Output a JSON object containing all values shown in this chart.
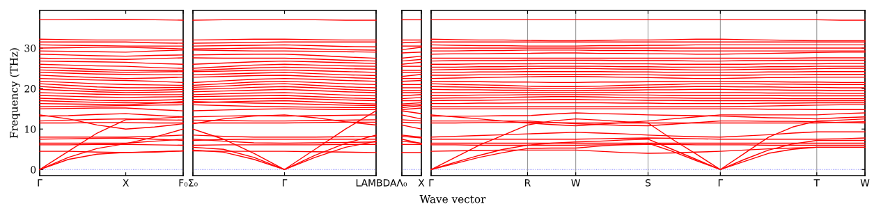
{
  "chart_data": [
    {
      "type": "line",
      "ylabel": "Frequency (THz)",
      "ylim": [
        -1.5,
        39.3
      ],
      "yticks": [
        0,
        10,
        20,
        30
      ],
      "categories": [
        "Γ",
        null,
        null,
        "X",
        null,
        "F₀"
      ],
      "ref_lines": [
        {
          "axis": "y",
          "value": 0,
          "color": "#8080ff",
          "line_style": "dotted"
        }
      ],
      "series": [
        {
          "color": "#ff0000",
          "values": [
            37,
            37,
            37.1,
            37.1,
            37,
            36.9
          ]
        },
        {
          "color": "#ff0000",
          "values": [
            32.2,
            32.1,
            32,
            32,
            32,
            32
          ]
        },
        {
          "color": "#ff0000",
          "values": [
            31.5,
            31.5,
            31.5,
            31.5,
            31.3,
            31.2
          ]
        },
        {
          "color": "#ff0000",
          "values": [
            30.8,
            30.7,
            30.6,
            30.5,
            30.5,
            30.5
          ]
        },
        {
          "color": "#ff0000",
          "values": [
            30,
            30.1,
            30.2,
            30.2,
            30,
            29.8
          ]
        },
        {
          "color": "#ff0000",
          "values": [
            29.3,
            29.2,
            29.1,
            29,
            29.3,
            29.5
          ]
        },
        {
          "color": "#ff0000",
          "values": [
            28.5,
            28.3,
            28.1,
            28,
            28.2,
            28.3
          ]
        },
        {
          "color": "#ff0000",
          "values": [
            27.5,
            27.4,
            27.3,
            27.2,
            27.4,
            27.6
          ]
        },
        {
          "color": "#ff0000",
          "values": [
            26.8,
            26.7,
            26.6,
            26.5,
            26.2,
            26
          ]
        },
        {
          "color": "#ff0000",
          "values": [
            26,
            25.8,
            25.6,
            25.5,
            25.2,
            25
          ]
        },
        {
          "color": "#ff0000",
          "values": [
            25.3,
            25,
            24.7,
            24.5,
            24.5,
            24.5
          ]
        },
        {
          "color": "#ff0000",
          "values": [
            24.6,
            24.4,
            24.2,
            24,
            24.1,
            24.2
          ]
        },
        {
          "color": "#ff0000",
          "values": [
            24,
            23.8,
            23.6,
            23.5,
            23.4,
            23.4
          ]
        },
        {
          "color": "#ff0000",
          "values": [
            23.3,
            23,
            22.7,
            22.5,
            22.6,
            22.8
          ]
        },
        {
          "color": "#ff0000",
          "values": [
            22.5,
            22.3,
            22.1,
            22,
            21.8,
            21.5
          ]
        },
        {
          "color": "#ff0000",
          "values": [
            21.8,
            21.5,
            21.2,
            21,
            20.9,
            20.8
          ]
        },
        {
          "color": "#ff0000",
          "values": [
            21.2,
            20.8,
            20.4,
            20.2,
            20.2,
            20.3
          ]
        },
        {
          "color": "#ff0000",
          "values": [
            20.5,
            20.1,
            19.7,
            19.5,
            19.6,
            19.8
          ]
        },
        {
          "color": "#ff0000",
          "values": [
            19.8,
            19.5,
            19.2,
            19,
            19.1,
            19.2
          ]
        },
        {
          "color": "#ff0000",
          "values": [
            19,
            18.8,
            18.6,
            18.5,
            18.5,
            18.5
          ]
        },
        {
          "color": "#ff0000",
          "values": [
            18.3,
            18.1,
            17.9,
            17.8,
            17.9,
            18
          ]
        },
        {
          "color": "#ff0000",
          "values": [
            17.6,
            17.4,
            17.1,
            17,
            17.1,
            17.3
          ]
        },
        {
          "color": "#ff0000",
          "values": [
            17,
            16.8,
            16.6,
            16.5,
            16.5,
            16.5
          ]
        },
        {
          "color": "#ff0000",
          "values": [
            16.3,
            16.2,
            16.1,
            16,
            16.4,
            16.8
          ]
        },
        {
          "color": "#ff0000",
          "values": [
            15.5,
            15.6,
            15.7,
            15.8,
            15.9,
            16
          ]
        },
        {
          "color": "#ff0000",
          "values": [
            15,
            15.1,
            15.2,
            15.2,
            14.8,
            14.5
          ]
        },
        {
          "color": "#ff0000",
          "values": [
            13.5,
            12.5,
            11,
            10,
            10.5,
            11.3
          ]
        },
        {
          "color": "#ff0000",
          "values": [
            13.2,
            13.3,
            13.6,
            13.8,
            13.4,
            13
          ]
        },
        {
          "color": "#ff0000",
          "values": [
            12,
            12.2,
            12.4,
            12.5,
            12.3,
            12.2
          ]
        },
        {
          "color": "#ff0000",
          "values": [
            11.5,
            11.5,
            11.6,
            11.6,
            11.5,
            11.5
          ]
        },
        {
          "color": "#ff0000",
          "values": [
            8,
            8,
            8,
            8,
            8.2,
            8.5
          ]
        },
        {
          "color": "#ff0000",
          "values": [
            7.5,
            7.6,
            7.7,
            7.8,
            7.5,
            7.2
          ]
        },
        {
          "color": "#ff0000",
          "values": [
            6.5,
            6.5,
            6.5,
            6.5,
            7,
            7.5
          ]
        },
        {
          "color": "#ff0000",
          "values": [
            6.1,
            6.1,
            6.2,
            6.2,
            6.1,
            6
          ]
        },
        {
          "color": "#ff0000",
          "values": [
            4.5,
            4.5,
            4.3,
            4.2,
            4.4,
            4.6
          ]
        },
        {
          "color": "#ff0000",
          "values": [
            0,
            2.5,
            3.8,
            4.2,
            4.3,
            4.6
          ]
        },
        {
          "color": "#ff0000",
          "values": [
            0,
            3,
            5.2,
            6.4,
            8,
            10
          ]
        },
        {
          "color": "#ff0000",
          "values": [
            0,
            4.5,
            9,
            12.3,
            12.6,
            13
          ]
        }
      ]
    },
    {
      "type": "line",
      "ylim": [
        -1.5,
        39.3
      ],
      "yticks": [
        0,
        10,
        20,
        30
      ],
      "tick_labels": "x",
      "categories": [
        "Σ₀",
        null,
        null,
        "Γ",
        null,
        null,
        "LAMBDA"
      ],
      "ref_lines": [
        {
          "axis": "y",
          "value": 0,
          "color": "#8080ff",
          "line_style": "dotted"
        }
      ],
      "series": [
        {
          "color": "#ff0000",
          "values": [
            36.9,
            37,
            37,
            37,
            37,
            36.9,
            36.9
          ]
        },
        {
          "color": "#ff0000",
          "values": [
            32,
            32.1,
            32.2,
            32.2,
            32.1,
            32,
            32
          ]
        },
        {
          "color": "#ff0000",
          "values": [
            31.2,
            31.3,
            31.4,
            31.5,
            31.5,
            31.5,
            31.5
          ]
        },
        {
          "color": "#ff0000",
          "values": [
            30.5,
            30.6,
            30.7,
            30.8,
            30.6,
            30.4,
            30.3
          ]
        },
        {
          "color": "#ff0000",
          "values": [
            29.8,
            29.9,
            30,
            30,
            29.8,
            29.6,
            29.5
          ]
        },
        {
          "color": "#ff0000",
          "values": [
            29.5,
            29.4,
            29.3,
            29.3,
            29.2,
            29.1,
            29
          ]
        },
        {
          "color": "#ff0000",
          "values": [
            28.3,
            28.4,
            28.5,
            28.5,
            28.2,
            27.8,
            27.5
          ]
        },
        {
          "color": "#ff0000",
          "values": [
            27.6,
            27.5,
            27.5,
            27.5,
            27.3,
            27,
            26.8
          ]
        },
        {
          "color": "#ff0000",
          "values": [
            26,
            26.3,
            26.6,
            26.8,
            26.6,
            26.4,
            26.2
          ]
        },
        {
          "color": "#ff0000",
          "values": [
            25,
            25.4,
            25.8,
            26,
            25.8,
            25.6,
            25.5
          ]
        },
        {
          "color": "#ff0000",
          "values": [
            24.5,
            24.8,
            25.1,
            25.3,
            25.1,
            24.9,
            24.8
          ]
        },
        {
          "color": "#ff0000",
          "values": [
            24.2,
            24.3,
            24.5,
            24.6,
            24.4,
            24.2,
            24
          ]
        },
        {
          "color": "#ff0000",
          "values": [
            23.4,
            23.6,
            23.8,
            24,
            23.7,
            23.4,
            23.2
          ]
        },
        {
          "color": "#ff0000",
          "values": [
            22.8,
            23,
            23.2,
            23.3,
            23,
            22.7,
            22.5
          ]
        },
        {
          "color": "#ff0000",
          "values": [
            21.5,
            21.9,
            22.3,
            22.5,
            22.3,
            22,
            21.8
          ]
        },
        {
          "color": "#ff0000",
          "values": [
            20.8,
            21.2,
            21.6,
            21.8,
            21.5,
            21.2,
            21
          ]
        },
        {
          "color": "#ff0000",
          "values": [
            20.3,
            20.6,
            21,
            21.2,
            20.8,
            20.4,
            20.2
          ]
        },
        {
          "color": "#ff0000",
          "values": [
            19.8,
            20,
            20.3,
            20.5,
            20.2,
            19.8,
            19.5
          ]
        },
        {
          "color": "#ff0000",
          "values": [
            19.2,
            19.4,
            19.6,
            19.8,
            19.5,
            19.2,
            19
          ]
        },
        {
          "color": "#ff0000",
          "values": [
            18.5,
            18.7,
            18.9,
            19,
            18.7,
            18.4,
            18.2
          ]
        },
        {
          "color": "#ff0000",
          "values": [
            18,
            18.1,
            18.2,
            18.3,
            18,
            17.7,
            17.5
          ]
        },
        {
          "color": "#ff0000",
          "values": [
            17.3,
            17.4,
            17.5,
            17.6,
            17.4,
            17.2,
            17
          ]
        },
        {
          "color": "#ff0000",
          "values": [
            16.5,
            16.7,
            16.9,
            17,
            16.7,
            16.4,
            16.2
          ]
        },
        {
          "color": "#ff0000",
          "values": [
            16.8,
            16.6,
            16.4,
            16.3,
            16.1,
            15.9,
            15.8
          ]
        },
        {
          "color": "#ff0000",
          "values": [
            16,
            15.8,
            15.6,
            15.5,
            15.4,
            15.3,
            15.3
          ]
        },
        {
          "color": "#ff0000",
          "values": [
            14.5,
            14.7,
            14.9,
            15,
            14.9,
            14.8,
            14.8
          ]
        },
        {
          "color": "#ff0000",
          "values": [
            11.3,
            12.5,
            13.2,
            13.5,
            12.8,
            11.8,
            11
          ]
        },
        {
          "color": "#ff0000",
          "values": [
            13,
            13.2,
            13.3,
            13.2,
            13.3,
            13.4,
            13.5
          ]
        },
        {
          "color": "#ff0000",
          "values": [
            12.2,
            12.1,
            12,
            12,
            12.1,
            12.2,
            12.3
          ]
        },
        {
          "color": "#ff0000",
          "values": [
            11.5,
            11.5,
            11.5,
            11.5,
            11.6,
            11.7,
            11.7
          ]
        },
        {
          "color": "#ff0000",
          "values": [
            8.5,
            8.2,
            8,
            8,
            8,
            8.1,
            8.2
          ]
        },
        {
          "color": "#ff0000",
          "values": [
            7.2,
            7.4,
            7.5,
            7.5,
            7.5,
            7.5,
            7.5
          ]
        },
        {
          "color": "#ff0000",
          "values": [
            7.5,
            7,
            6.6,
            6.5,
            6.6,
            6.7,
            6.8
          ]
        },
        {
          "color": "#ff0000",
          "values": [
            6,
            6.1,
            6.1,
            6.1,
            6.1,
            6.2,
            6.2
          ]
        },
        {
          "color": "#ff0000",
          "values": [
            4.6,
            4.5,
            4.5,
            4.5,
            4.4,
            4.3,
            4.2
          ]
        },
        {
          "color": "#ff0000",
          "values": [
            4.8,
            4.3,
            2.5,
            0,
            3,
            5.5,
            7
          ]
        },
        {
          "color": "#ff0000",
          "values": [
            5.5,
            5,
            3,
            0,
            3.5,
            6.5,
            8.5
          ]
        },
        {
          "color": "#ff0000",
          "values": [
            10,
            7.5,
            4,
            0,
            5,
            10,
            14.5
          ]
        }
      ]
    },
    {
      "type": "line",
      "ylim": [
        -1.5,
        39.3
      ],
      "yticks": [
        0,
        10,
        20,
        30
      ],
      "tick_labels": "x",
      "categories": [
        "Λ₀",
        "X"
      ],
      "ref_lines": [
        {
          "axis": "y",
          "value": 0,
          "color": "#8080ff",
          "line_style": "dotted"
        }
      ],
      "series": [
        {
          "color": "#ff0000",
          "values": [
            37,
            37
          ]
        },
        {
          "color": "#ff0000",
          "values": [
            32,
            32
          ]
        },
        {
          "color": "#ff0000",
          "values": [
            31.3,
            31.5
          ]
        },
        {
          "color": "#ff0000",
          "values": [
            30.5,
            30.5
          ]
        },
        {
          "color": "#ff0000",
          "values": [
            29.6,
            30.2
          ]
        },
        {
          "color": "#ff0000",
          "values": [
            28.8,
            29
          ]
        },
        {
          "color": "#ff0000",
          "values": [
            27.5,
            28
          ]
        },
        {
          "color": "#ff0000",
          "values": [
            26.8,
            27.2
          ]
        },
        {
          "color": "#ff0000",
          "values": [
            26,
            26.5
          ]
        },
        {
          "color": "#ff0000",
          "values": [
            25.5,
            25.5
          ]
        },
        {
          "color": "#ff0000",
          "values": [
            24.5,
            24.5
          ]
        },
        {
          "color": "#ff0000",
          "values": [
            24,
            24
          ]
        },
        {
          "color": "#ff0000",
          "values": [
            23,
            23.5
          ]
        },
        {
          "color": "#ff0000",
          "values": [
            22.5,
            22.5
          ]
        },
        {
          "color": "#ff0000",
          "values": [
            21.8,
            22
          ]
        },
        {
          "color": "#ff0000",
          "values": [
            21,
            21
          ]
        },
        {
          "color": "#ff0000",
          "values": [
            20.2,
            20.2
          ]
        },
        {
          "color": "#ff0000",
          "values": [
            19.5,
            19.5
          ]
        },
        {
          "color": "#ff0000",
          "values": [
            19,
            19
          ]
        },
        {
          "color": "#ff0000",
          "values": [
            18.2,
            18.5
          ]
        },
        {
          "color": "#ff0000",
          "values": [
            17.5,
            17.8
          ]
        },
        {
          "color": "#ff0000",
          "values": [
            17,
            17
          ]
        },
        {
          "color": "#ff0000",
          "values": [
            16.2,
            16.5
          ]
        },
        {
          "color": "#ff0000",
          "values": [
            15.8,
            16
          ]
        },
        {
          "color": "#ff0000",
          "values": [
            15.3,
            15.8
          ]
        },
        {
          "color": "#ff0000",
          "values": [
            14.8,
            15.2
          ]
        },
        {
          "color": "#ff0000",
          "values": [
            14.5,
            13.8
          ]
        },
        {
          "color": "#ff0000",
          "values": [
            13.5,
            12.5
          ]
        },
        {
          "color": "#ff0000",
          "values": [
            12.3,
            12
          ]
        },
        {
          "color": "#ff0000",
          "values": [
            11.7,
            11.5
          ]
        },
        {
          "color": "#ff0000",
          "values": [
            11,
            10
          ]
        },
        {
          "color": "#ff0000",
          "values": [
            8.5,
            8
          ]
        },
        {
          "color": "#ff0000",
          "values": [
            8.2,
            7.8
          ]
        },
        {
          "color": "#ff0000",
          "values": [
            7,
            6.5
          ]
        },
        {
          "color": "#ff0000",
          "values": [
            7.5,
            6.4
          ]
        },
        {
          "color": "#ff0000",
          "values": [
            6.2,
            6.2
          ]
        },
        {
          "color": "#ff0000",
          "values": [
            4.2,
            4.2
          ]
        }
      ]
    },
    {
      "type": "line",
      "xlabel": "Wave vector",
      "ylim": [
        -1.5,
        39.3
      ],
      "yticks": [
        0,
        10,
        20,
        30
      ],
      "tick_labels": "x",
      "categories": [
        "Γ",
        null,
        null,
        null,
        "R",
        null,
        "W",
        null,
        null,
        "S",
        null,
        null,
        "Γ",
        null,
        null,
        null,
        "T",
        null,
        "W"
      ],
      "grid": "x",
      "ref_lines": [
        {
          "axis": "y",
          "value": 0,
          "color": "#8080ff",
          "line_style": "dotted"
        }
      ],
      "series": [
        {
          "color": "#ff0000",
          "values": [
            37,
            37,
            37,
            37,
            37,
            37,
            37,
            37,
            37,
            37,
            37,
            37,
            37,
            37,
            37,
            37,
            37,
            36.9,
            36.9
          ]
        },
        {
          "color": "#ff0000",
          "values": [
            32.2,
            32.1,
            32,
            32,
            31.9,
            31.8,
            31.8,
            31.9,
            32,
            32,
            32.1,
            32.2,
            32.2,
            32.1,
            32,
            31.9,
            31.8,
            31.8,
            31.8
          ]
        },
        {
          "color": "#ff0000",
          "values": [
            31.5,
            31.5,
            31.5,
            31.5,
            31.5,
            31.5,
            31.5,
            31.5,
            31.5,
            31.5,
            31.5,
            31.5,
            31.5,
            31.5,
            31.5,
            31.5,
            31.5,
            31.5,
            31.5
          ]
        },
        {
          "color": "#ff0000",
          "values": [
            30.8,
            30.7,
            30.6,
            30.6,
            30.5,
            30.5,
            30.5,
            30.6,
            30.6,
            30.7,
            30.7,
            30.8,
            30.8,
            30.8,
            30.8,
            30.8,
            30.8,
            30.8,
            30.8
          ]
        },
        {
          "color": "#ff0000",
          "values": [
            30,
            30,
            30,
            30,
            30,
            30,
            30,
            30,
            30,
            30,
            30,
            30,
            30,
            30,
            30,
            30,
            30,
            30,
            30
          ]
        },
        {
          "color": "#ff0000",
          "values": [
            29.3,
            29.3,
            29.4,
            29.4,
            29.5,
            29.5,
            29.5,
            29.4,
            29.4,
            29.4,
            29.3,
            29.3,
            29.3,
            29.3,
            29.3,
            29.3,
            29.3,
            29.3,
            29.3
          ]
        },
        {
          "color": "#ff0000",
          "values": [
            28.5,
            28.6,
            28.6,
            28.7,
            28.7,
            28.8,
            28.8,
            28.7,
            28.7,
            28.6,
            28.6,
            28.5,
            28.5,
            28.6,
            28.7,
            28.8,
            28.9,
            29,
            29
          ]
        },
        {
          "color": "#ff0000",
          "values": [
            27.5,
            27.5,
            27.5,
            27.5,
            27.5,
            27.5,
            27.5,
            27.5,
            27.5,
            27.5,
            27.5,
            27.5,
            27.5,
            27.5,
            27.5,
            27.5,
            27.6,
            27.6,
            27.6
          ]
        },
        {
          "color": "#ff0000",
          "values": [
            26.8,
            26.9,
            26.9,
            26.9,
            27,
            27,
            27,
            27,
            26.9,
            26.9,
            26.9,
            26.8,
            26.8,
            26.9,
            26.9,
            27,
            27,
            27,
            27
          ]
        },
        {
          "color": "#ff0000",
          "values": [
            26,
            26,
            26.1,
            26.1,
            26.1,
            26.2,
            26.2,
            26.1,
            26.1,
            26.1,
            26,
            26,
            26,
            26,
            26.1,
            26.1,
            26.1,
            26.2,
            26.2
          ]
        },
        {
          "color": "#ff0000",
          "values": [
            25.3,
            25.3,
            25.4,
            25.4,
            25.5,
            25.5,
            25.5,
            25.5,
            25.4,
            25.4,
            25.3,
            25.3,
            25.3,
            25.3,
            25.4,
            25.4,
            25.5,
            25.5,
            25.5
          ]
        },
        {
          "color": "#ff0000",
          "values": [
            24.6,
            24.7,
            24.8,
            24.8,
            24.9,
            25,
            25,
            24.9,
            24.8,
            24.8,
            24.7,
            24.6,
            24.6,
            24.7,
            24.8,
            24.8,
            24.9,
            25,
            25
          ]
        },
        {
          "color": "#ff0000",
          "values": [
            24,
            24,
            24.1,
            24.1,
            24.2,
            24.2,
            24.2,
            24.2,
            24.1,
            24.1,
            24,
            24,
            24,
            24,
            24.1,
            24.1,
            24.2,
            24.2,
            24.2
          ]
        },
        {
          "color": "#ff0000",
          "values": [
            23.3,
            23.3,
            23.4,
            23.4,
            23.5,
            23.5,
            23.5,
            23.5,
            23.4,
            23.4,
            23.3,
            23.3,
            23.3,
            23.3,
            23.4,
            23.4,
            23.5,
            23.5,
            23.5
          ]
        },
        {
          "color": "#ff0000",
          "values": [
            22.5,
            22.6,
            22.7,
            22.8,
            22.9,
            23,
            23,
            22.9,
            22.8,
            22.7,
            22.6,
            22.5,
            22.5,
            22.6,
            22.7,
            22.7,
            22.8,
            22.8,
            22.8
          ]
        },
        {
          "color": "#ff0000",
          "values": [
            21.8,
            21.7,
            21.7,
            21.6,
            21.6,
            21.5,
            21.5,
            21.6,
            21.6,
            21.7,
            21.7,
            21.8,
            21.8,
            21.7,
            21.7,
            21.6,
            21.6,
            21.5,
            21.5
          ]
        },
        {
          "color": "#ff0000",
          "values": [
            21.2,
            21,
            20.9,
            20.8,
            20.6,
            20.5,
            20.5,
            20.6,
            20.8,
            20.9,
            21,
            21.2,
            21.2,
            21.2,
            21.1,
            21.1,
            21,
            21,
            21
          ]
        },
        {
          "color": "#ff0000",
          "values": [
            20.5,
            20.4,
            20.3,
            20.2,
            20.1,
            20,
            20,
            20.1,
            20.2,
            20.3,
            20.4,
            20.5,
            20.5,
            20.4,
            20.4,
            20.3,
            20.3,
            20.2,
            20.2
          ]
        },
        {
          "color": "#ff0000",
          "values": [
            19.8,
            19.7,
            19.7,
            19.6,
            19.6,
            19.5,
            19.5,
            19.6,
            19.6,
            19.7,
            19.7,
            19.8,
            19.8,
            19.7,
            19.7,
            19.6,
            19.6,
            19.5,
            19.5
          ]
        },
        {
          "color": "#ff0000",
          "values": [
            19,
            19,
            19,
            19,
            19,
            19,
            19,
            19,
            19,
            19,
            19,
            19,
            19,
            19,
            18.9,
            18.9,
            18.9,
            18.8,
            18.8
          ]
        },
        {
          "color": "#ff0000",
          "values": [
            18.3,
            18.3,
            18.4,
            18.4,
            18.5,
            18.5,
            18.5,
            18.5,
            18.4,
            18.4,
            18.3,
            18.3,
            18.3,
            18.3,
            18.3,
            18.2,
            18.2,
            18.2,
            18.2
          ]
        },
        {
          "color": "#ff0000",
          "values": [
            17.6,
            17.7,
            17.7,
            17.8,
            17.9,
            18,
            18,
            17.9,
            17.8,
            17.7,
            17.7,
            17.6,
            17.6,
            17.6,
            17.6,
            17.5,
            17.5,
            17.5,
            17.5
          ]
        },
        {
          "color": "#ff0000",
          "values": [
            17,
            17.1,
            17.1,
            17.2,
            17.2,
            17.3,
            17.3,
            17.2,
            17.2,
            17.1,
            17.1,
            17,
            17,
            17,
            17,
            17,
            17,
            17,
            17
          ]
        },
        {
          "color": "#ff0000",
          "values": [
            16.3,
            16.3,
            16.4,
            16.4,
            16.5,
            16.5,
            16.5,
            16.5,
            16.4,
            16.4,
            16.3,
            16.3,
            16.3,
            16.3,
            16.4,
            16.4,
            16.5,
            16.5,
            16.5
          ]
        },
        {
          "color": "#ff0000",
          "values": [
            15.5,
            15.5,
            15.5,
            15.5,
            15.5,
            15.5,
            15.5,
            15.5,
            15.5,
            15.5,
            15.5,
            15.5,
            15.5,
            15.6,
            15.7,
            15.8,
            15.9,
            16,
            16
          ]
        },
        {
          "color": "#ff0000",
          "values": [
            15,
            15,
            15,
            15,
            15,
            15,
            15,
            15,
            15,
            15,
            15,
            15,
            15,
            15,
            14.9,
            14.9,
            14.8,
            14.8,
            14.8
          ]
        },
        {
          "color": "#ff0000",
          "values": [
            13.5,
            13,
            12.5,
            12,
            11.5,
            11.1,
            10.8,
            11.2,
            11.6,
            12,
            12.5,
            13,
            13.5,
            13.5,
            13.5,
            13.5,
            13.5,
            13.8,
            14
          ]
        },
        {
          "color": "#ff0000",
          "values": [
            13.2,
            13.2,
            13.2,
            13.3,
            13.3,
            13.7,
            14,
            13.8,
            13.7,
            13.5,
            13.4,
            13.3,
            13.2,
            13,
            12.8,
            12.7,
            12.5,
            12.8,
            13
          ]
        },
        {
          "color": "#ff0000",
          "values": [
            12,
            12,
            12,
            12,
            12,
            11.6,
            11.3,
            11.1,
            10.9,
            10.8,
            11.2,
            11.6,
            12,
            12,
            11.9,
            11.9,
            11.8,
            11.6,
            11.5
          ]
        },
        {
          "color": "#ff0000",
          "values": [
            11.5,
            11.5,
            11.6,
            11.6,
            11.7,
            11.6,
            11.5,
            11.5,
            11.5,
            11.5,
            11.5,
            11.5,
            11.5,
            11.5,
            11.5,
            11.5,
            11.5,
            11.7,
            11.8
          ]
        },
        {
          "color": "#ff0000",
          "values": [
            8,
            8.2,
            8.4,
            8.6,
            8.8,
            9,
            9.2,
            9,
            8.8,
            8.5,
            8.3,
            8.1,
            8,
            8.3,
            8.6,
            9,
            9.3,
            9.3,
            9.3
          ]
        },
        {
          "color": "#ff0000",
          "values": [
            7.5,
            7.5,
            7.5,
            7.5,
            7.5,
            7.5,
            7.5,
            7.6,
            7.7,
            7.8,
            7.7,
            7.6,
            7.5,
            7.5,
            7.5,
            7.5,
            7.5,
            7.6,
            7.8
          ]
        },
        {
          "color": "#ff0000",
          "values": [
            6.5,
            6.5,
            6.5,
            6.5,
            6.5,
            6.5,
            6.5,
            6.5,
            6.5,
            6.5,
            6.5,
            6.5,
            6.5,
            6.5,
            6.5,
            6.5,
            6.5,
            6.5,
            6.5
          ]
        },
        {
          "color": "#ff0000",
          "values": [
            6.1,
            6.1,
            6,
            6,
            6,
            6,
            6,
            6.1,
            6.1,
            6.2,
            6.2,
            6.1,
            6.1,
            6.1,
            6,
            6,
            6,
            6,
            6
          ]
        },
        {
          "color": "#ff0000",
          "values": [
            4.5,
            4.6,
            4.7,
            4.8,
            4.8,
            4.8,
            4.8,
            4.5,
            4.2,
            4,
            4.1,
            4.3,
            4.5,
            4.8,
            5.1,
            5.3,
            5.5,
            5.5,
            5.5
          ]
        },
        {
          "color": "#ff0000",
          "values": [
            0,
            1.5,
            3,
            4.2,
            5.2,
            5.3,
            5.3,
            5.8,
            6.2,
            6.5,
            4.5,
            2.2,
            0,
            2,
            4,
            5,
            5.5,
            5.5,
            5.5
          ]
        },
        {
          "color": "#ff0000",
          "values": [
            0,
            1.8,
            3.5,
            5,
            6,
            6.5,
            6.8,
            7,
            7.3,
            7.5,
            5,
            2.5,
            0,
            2.5,
            4.8,
            6.3,
            7.2,
            7.2,
            7.2
          ]
        },
        {
          "color": "#ff0000",
          "values": [
            0,
            3,
            6,
            8.5,
            11,
            12,
            12.5,
            12.2,
            11.8,
            11.5,
            7.5,
            3.8,
            0,
            4,
            8,
            10.5,
            12,
            12.2,
            12.5
          ]
        }
      ]
    }
  ]
}
